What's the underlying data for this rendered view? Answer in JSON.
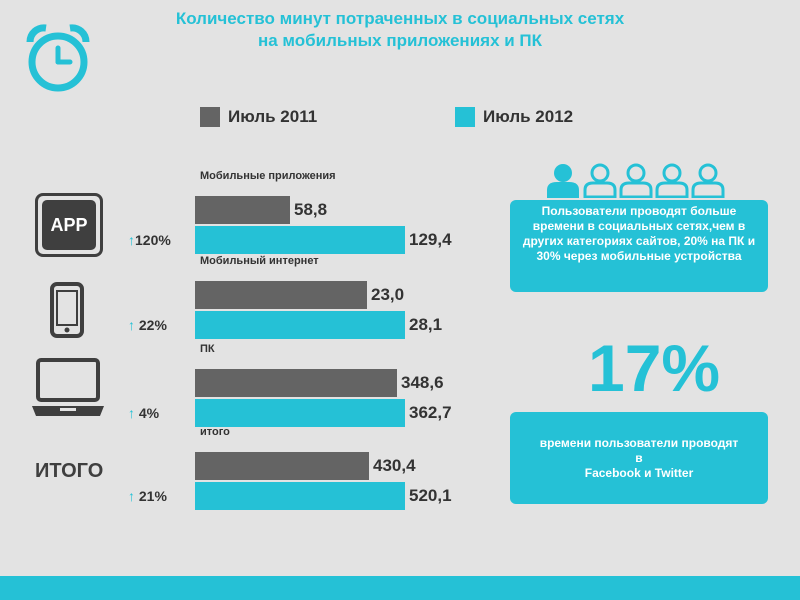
{
  "title": {
    "line1": "Количество минут потраченных  в социальных сетях",
    "line2": "на мобильных приложениях  и ПК"
  },
  "colors": {
    "accent": "#25c1d6",
    "dark": "#646464",
    "background": "#e3e3e3"
  },
  "icons": [
    "alarm-clock-icon",
    "app-icon",
    "smartphone-icon",
    "laptop-icon",
    "users-icon",
    "up-arrow-icon"
  ],
  "app_icon_text": "APP",
  "total_label": "ИТОГО",
  "chart_data": {
    "type": "bar",
    "orientation": "horizontal",
    "title": "Количество минут потраченных  в социальных сетях на мобильных приложениях  и ПК",
    "legend": [
      "Июль 2011",
      "Июль 2012"
    ],
    "categories": [
      "Мобильные приложения",
      "Мобильный интернет",
      "ПК",
      "итого"
    ],
    "series": [
      {
        "name": "Июль 2011",
        "values": [
          58.8,
          23.0,
          348.6,
          430.4
        ],
        "labels": [
          "58,8",
          "23,0",
          "348,6",
          "430,4"
        ]
      },
      {
        "name": "Июль 2012",
        "values": [
          129.4,
          28.1,
          362.7,
          520.1
        ],
        "labels": [
          "129,4",
          "28,1",
          "362,7",
          "520,1"
        ]
      }
    ],
    "growth": [
      "120%",
      "22%",
      "4%",
      "21%"
    ]
  },
  "info": {
    "card1": "Пользователи проводят больше времени в социальных сетях,чем в других категориях сайтов, 20% на ПК и 30% через мобильные устройства",
    "big_percent": "17%",
    "card2_line1": "времени пользователи проводят",
    "card2_line2": "в",
    "card2_line3": "Facebook и Twitter"
  }
}
